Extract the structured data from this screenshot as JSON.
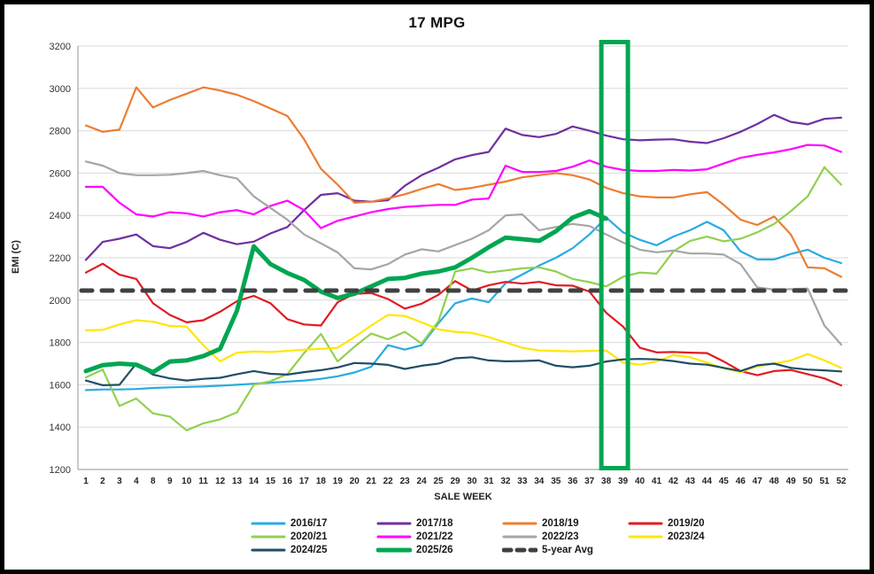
{
  "window": {
    "title": "17 MPG"
  },
  "chart_data": {
    "type": "line",
    "title": "17 MPG",
    "xlabel": "SALE WEEK",
    "ylabel": "EMI (C)",
    "ylim": [
      1200,
      3200
    ],
    "ytick_step": 200,
    "grid": true,
    "legend_position": "bottom",
    "categories": [
      "1",
      "2",
      "3",
      "4",
      "8",
      "9",
      "10",
      "11",
      "12",
      "13",
      "14",
      "15",
      "16",
      "17",
      "18",
      "19",
      "20",
      "21",
      "22",
      "23",
      "24",
      "25",
      "29",
      "30",
      "31",
      "32",
      "33",
      "34",
      "35",
      "36",
      "37",
      "38",
      "39",
      "40",
      "41",
      "42",
      "43",
      "44",
      "45",
      "46",
      "47",
      "48",
      "49",
      "50",
      "51",
      "52"
    ],
    "series": [
      {
        "name": "2016/17",
        "color": "#29ABE2",
        "width": 2.2,
        "values": [
          1575,
          1578,
          1578,
          1580,
          1585,
          1588,
          1590,
          1592,
          1596,
          1600,
          1605,
          1610,
          1615,
          1620,
          1628,
          1640,
          1658,
          1685,
          1787,
          1766,
          1787,
          1891,
          1985,
          2008,
          1990,
          2079,
          2121,
          2163,
          2200,
          2245,
          2310,
          2390,
          2320,
          2285,
          2259,
          2300,
          2330,
          2370,
          2330,
          2230,
          2192,
          2192,
          2218,
          2238,
          2200,
          2175
        ]
      },
      {
        "name": "2017/18",
        "color": "#7030A0",
        "width": 2.2,
        "values": [
          2190,
          2275,
          2290,
          2310,
          2255,
          2245,
          2275,
          2318,
          2285,
          2264,
          2276,
          2315,
          2345,
          2425,
          2497,
          2505,
          2470,
          2465,
          2472,
          2540,
          2590,
          2625,
          2665,
          2685,
          2700,
          2810,
          2780,
          2770,
          2785,
          2820,
          2800,
          2777,
          2760,
          2755,
          2758,
          2760,
          2748,
          2742,
          2765,
          2795,
          2832,
          2875,
          2842,
          2830,
          2856,
          2862
        ]
      },
      {
        "name": "2018/19",
        "color": "#ED7D31",
        "width": 2.2,
        "values": [
          2825,
          2795,
          2805,
          3005,
          2910,
          2945,
          2975,
          3005,
          2990,
          2970,
          2940,
          2905,
          2870,
          2760,
          2620,
          2545,
          2460,
          2465,
          2480,
          2500,
          2525,
          2548,
          2520,
          2530,
          2545,
          2560,
          2580,
          2590,
          2600,
          2590,
          2570,
          2530,
          2505,
          2490,
          2485,
          2485,
          2500,
          2510,
          2450,
          2380,
          2355,
          2395,
          2310,
          2155,
          2150,
          2110
        ]
      },
      {
        "name": "2019/20",
        "color": "#E11B22",
        "width": 2.2,
        "values": [
          2130,
          2172,
          2120,
          2100,
          1985,
          1930,
          1895,
          1905,
          1945,
          1995,
          2020,
          1985,
          1910,
          1885,
          1880,
          1990,
          2030,
          2033,
          2005,
          1960,
          1983,
          2025,
          2090,
          2045,
          2070,
          2086,
          2078,
          2086,
          2070,
          2068,
          2040,
          1940,
          1875,
          1775,
          1753,
          1755,
          1752,
          1750,
          1710,
          1665,
          1645,
          1665,
          1670,
          1650,
          1630,
          1597
        ]
      },
      {
        "name": "2020/21",
        "color": "#92D050",
        "width": 2.2,
        "values": [
          1635,
          1672,
          1500,
          1535,
          1465,
          1450,
          1385,
          1418,
          1437,
          1470,
          1600,
          1617,
          1650,
          1750,
          1840,
          1710,
          1780,
          1842,
          1815,
          1850,
          1795,
          1900,
          2135,
          2150,
          2130,
          2140,
          2150,
          2155,
          2135,
          2100,
          2085,
          2065,
          2110,
          2130,
          2125,
          2230,
          2280,
          2300,
          2278,
          2290,
          2320,
          2360,
          2420,
          2490,
          2628,
          2545
        ]
      },
      {
        "name": "2021/22",
        "color": "#FF00FF",
        "width": 2.2,
        "values": [
          2535,
          2535,
          2460,
          2405,
          2395,
          2415,
          2410,
          2395,
          2415,
          2425,
          2405,
          2445,
          2470,
          2425,
          2340,
          2375,
          2395,
          2415,
          2430,
          2440,
          2445,
          2450,
          2450,
          2475,
          2480,
          2635,
          2605,
          2605,
          2610,
          2630,
          2660,
          2630,
          2615,
          2610,
          2610,
          2615,
          2612,
          2618,
          2645,
          2672,
          2686,
          2698,
          2713,
          2733,
          2730,
          2700
        ]
      },
      {
        "name": "2022/23",
        "color": "#A6A6A6",
        "width": 2.2,
        "values": [
          2655,
          2635,
          2600,
          2590,
          2590,
          2592,
          2600,
          2610,
          2590,
          2575,
          2490,
          2435,
          2380,
          2310,
          2268,
          2225,
          2150,
          2145,
          2170,
          2215,
          2240,
          2230,
          2260,
          2290,
          2330,
          2400,
          2405,
          2330,
          2345,
          2360,
          2350,
          2310,
          2272,
          2238,
          2226,
          2234,
          2220,
          2220,
          2215,
          2170,
          2060,
          2050,
          2052,
          2055,
          1880,
          1790
        ]
      },
      {
        "name": "2023/24",
        "color": "#FFE600",
        "width": 2.2,
        "values": [
          1857,
          1860,
          1885,
          1905,
          1898,
          1878,
          1875,
          1786,
          1711,
          1752,
          1757,
          1755,
          1760,
          1766,
          1770,
          1775,
          1825,
          1880,
          1930,
          1925,
          1895,
          1862,
          1850,
          1845,
          1825,
          1800,
          1775,
          1762,
          1760,
          1758,
          1760,
          1762,
          1705,
          1695,
          1710,
          1740,
          1730,
          1705,
          1678,
          1660,
          1688,
          1700,
          1715,
          1745,
          1715,
          1680
        ]
      },
      {
        "name": "2024/25",
        "color": "#1F4E66",
        "width": 2.2,
        "values": [
          1620,
          1598,
          1600,
          1700,
          1648,
          1630,
          1620,
          1628,
          1633,
          1650,
          1665,
          1652,
          1648,
          1660,
          1669,
          1682,
          1703,
          1700,
          1694,
          1675,
          1690,
          1700,
          1725,
          1730,
          1715,
          1711,
          1712,
          1715,
          1690,
          1683,
          1690,
          1710,
          1720,
          1722,
          1720,
          1712,
          1700,
          1695,
          1680,
          1665,
          1692,
          1700,
          1680,
          1672,
          1668,
          1663
        ]
      },
      {
        "name": "2025/26",
        "color": "#00A651",
        "width": 5,
        "values": [
          1665,
          1693,
          1700,
          1695,
          1660,
          1710,
          1715,
          1736,
          1770,
          1950,
          2254,
          2170,
          2128,
          2095,
          2040,
          2010,
          2030,
          2065,
          2100,
          2105,
          2125,
          2135,
          2155,
          2200,
          2250,
          2295,
          2288,
          2280,
          2325,
          2390,
          2420,
          2385,
          null,
          null,
          null,
          null,
          null,
          null,
          null,
          null,
          null,
          null,
          null,
          null,
          null,
          null
        ]
      }
    ],
    "avg_line": {
      "label": "5-year Avg",
      "value": 2045,
      "color": "#404040",
      "width": 5,
      "dash": "12 11"
    },
    "highlight_box": {
      "from_week": "38",
      "to_week": "39",
      "color": "#00A651",
      "stroke_width": 5
    }
  },
  "legend": {
    "rows": [
      [
        "2016/17",
        "2017/18",
        "2018/19",
        "2019/20"
      ],
      [
        "2020/21",
        "2021/22",
        "2022/23",
        "2023/24"
      ],
      [
        "2024/25",
        "2025/26",
        "5-year Avg"
      ]
    ]
  }
}
